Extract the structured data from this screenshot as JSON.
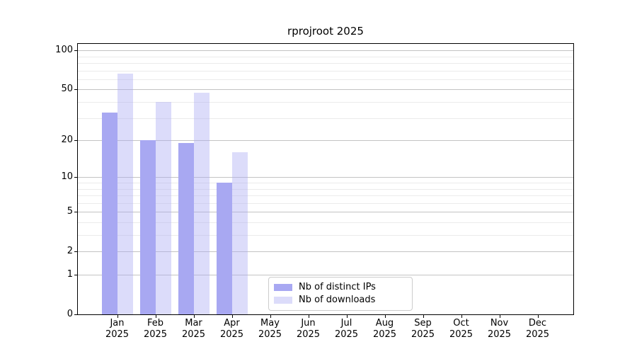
{
  "chart_data": {
    "type": "bar",
    "title": "rprojroot 2025",
    "xlabel": "",
    "ylabel": "",
    "months": [
      "Jan",
      "Feb",
      "Mar",
      "Apr",
      "May",
      "Jun",
      "Jul",
      "Aug",
      "Sep",
      "Oct",
      "Nov",
      "Dec"
    ],
    "year_label": "2025",
    "categories": [
      "Jan 2025",
      "Feb 2025",
      "Mar 2025",
      "Apr 2025",
      "May 2025",
      "Jun 2025",
      "Jul 2025",
      "Aug 2025",
      "Sep 2025",
      "Oct 2025",
      "Nov 2025",
      "Dec 2025"
    ],
    "series": [
      {
        "name": "Nb of distinct IPs",
        "color": "#a8a8f2",
        "alpha": 1,
        "values": [
          33,
          20,
          19,
          9,
          null,
          null,
          null,
          null,
          null,
          null,
          null,
          null
        ]
      },
      {
        "name": "Nb of downloads",
        "color": "#a8a8f2",
        "alpha": 0.4,
        "values": [
          66,
          40,
          47,
          16,
          null,
          null,
          null,
          null,
          null,
          null,
          null,
          null
        ]
      }
    ],
    "yscale": "log1p",
    "ylim": [
      0,
      112
    ],
    "y_major_ticks": [
      0,
      1,
      2,
      5,
      10,
      20,
      50,
      100
    ],
    "y_minor_gridlines": [
      3,
      4,
      6,
      7,
      8,
      9,
      30,
      40,
      60,
      70,
      80,
      90
    ],
    "grid": true,
    "legend_position": "lower center",
    "colors": {
      "major_grid": "#c3c3c3",
      "minor_grid": "#ebebeb",
      "spine": "#000000",
      "legend_border": "#cccccc"
    }
  }
}
